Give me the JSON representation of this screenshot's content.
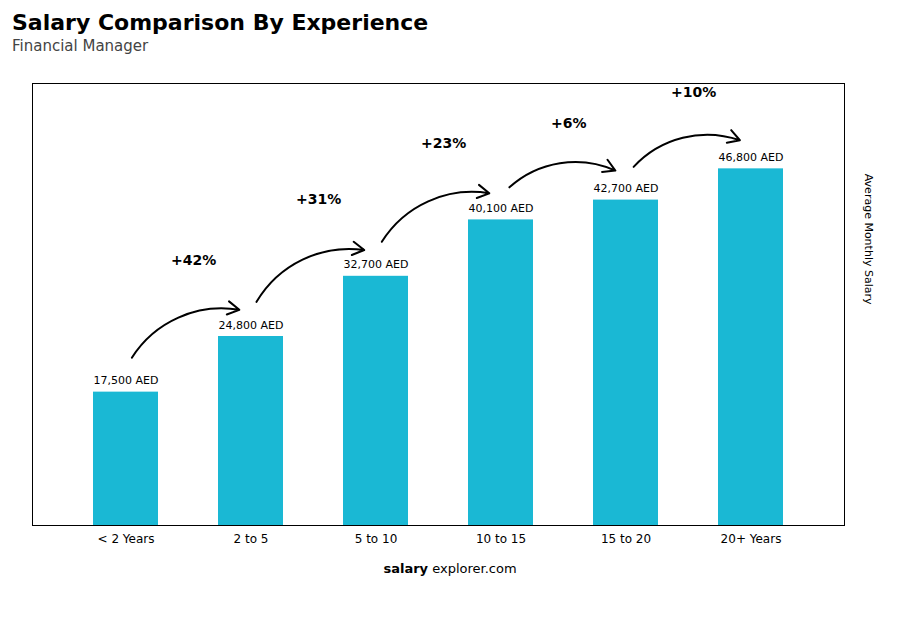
{
  "chart_data": {
    "type": "bar",
    "title": "Salary Comparison By Experience",
    "subtitle": "Financial Manager",
    "ylabel": "Average Monthly Salary",
    "footer": [
      "salary",
      "explorer.com"
    ],
    "categories": [
      "< 2 Years",
      "2 to 5",
      "5 to 10",
      "10 to 15",
      "15 to 20",
      "20+ Years"
    ],
    "values": [
      17500,
      24800,
      32700,
      40100,
      42700,
      46800
    ],
    "value_labels": [
      "17,500 AED",
      "24,800 AED",
      "32,700 AED",
      "40,100 AED",
      "42,700 AED",
      "46,800 AED"
    ],
    "data_labels": true,
    "annotations": [
      {
        "text": "+42%",
        "from": "< 2 Years",
        "to": "2 to 5"
      },
      {
        "text": "+31%",
        "from": "2 to 5",
        "to": "5 to 10"
      },
      {
        "text": "+23%",
        "from": "5 to 10",
        "to": "10 to 15"
      },
      {
        "text": "+6%",
        "from": "10 to 15",
        "to": "15 to 20"
      },
      {
        "text": "+10%",
        "from": "15 to 20",
        "to": "20+ Years"
      }
    ],
    "color": "#1ab8d4",
    "ylim": [
      0,
      58000
    ],
    "yticks": [],
    "tick_labels": "x",
    "grid": false
  }
}
